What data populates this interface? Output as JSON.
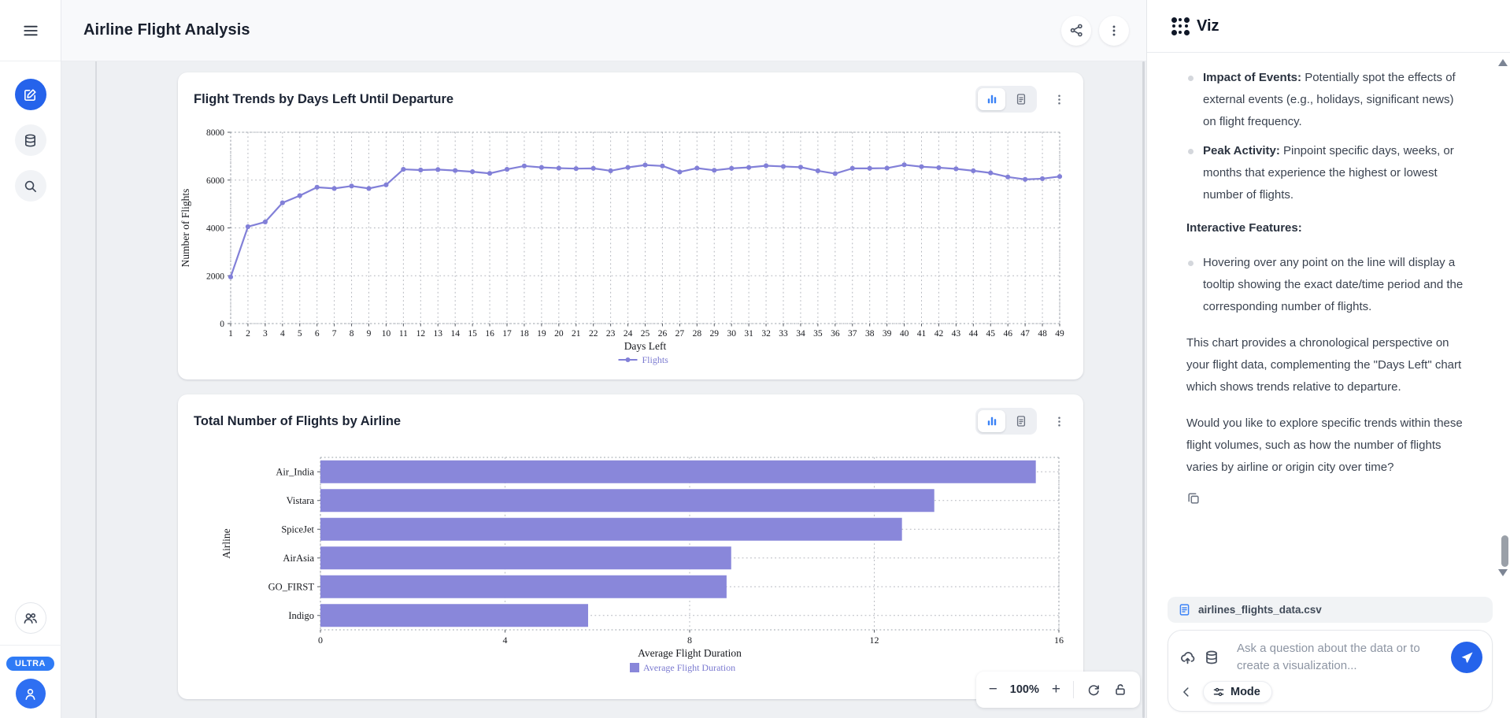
{
  "header": {
    "title": "Airline Flight Analysis"
  },
  "sidebar": {
    "plan_badge": "ULTRA"
  },
  "zoom_toolbar": {
    "minus": "−",
    "level": "100%",
    "plus": "+"
  },
  "chart_data": [
    {
      "type": "line",
      "title": "Flight Trends by Days Left Until Departure",
      "xlabel": "Days Left",
      "ylabel": "Number of Flights",
      "legend": [
        "Flights"
      ],
      "x": [
        1,
        2,
        3,
        4,
        5,
        6,
        7,
        8,
        9,
        10,
        11,
        12,
        13,
        14,
        15,
        16,
        17,
        18,
        19,
        20,
        21,
        22,
        23,
        24,
        25,
        26,
        27,
        28,
        29,
        30,
        31,
        32,
        33,
        34,
        35,
        36,
        37,
        38,
        39,
        40,
        41,
        42,
        43,
        44,
        45,
        46,
        47,
        48,
        49
      ],
      "values": [
        1950,
        4050,
        4250,
        5050,
        5350,
        5700,
        5650,
        5750,
        5650,
        5800,
        6450,
        6420,
        6440,
        6400,
        6350,
        6280,
        6450,
        6590,
        6530,
        6500,
        6480,
        6490,
        6390,
        6530,
        6630,
        6590,
        6340,
        6500,
        6410,
        6490,
        6530,
        6600,
        6570,
        6540,
        6390,
        6270,
        6490,
        6490,
        6500,
        6640,
        6560,
        6520,
        6470,
        6390,
        6300,
        6130,
        6030,
        6060,
        6150
      ],
      "y_ticks": [
        0,
        2000,
        4000,
        6000,
        8000
      ],
      "ylim": [
        0,
        8000
      ],
      "grid": true,
      "line_color": "#8280d8",
      "legend_text_color": "#7b7ad0"
    },
    {
      "type": "bar",
      "orientation": "horizontal",
      "title": "Total Number of Flights by Airline",
      "xlabel": "Average Flight Duration",
      "ylabel": "Airline",
      "legend": [
        "Average Flight Duration"
      ],
      "categories": [
        "Air_India",
        "Vistara",
        "SpiceJet",
        "AirAsia",
        "GO_FIRST",
        "Indigo"
      ],
      "values": [
        15.5,
        13.3,
        12.6,
        8.9,
        8.8,
        5.8
      ],
      "x_ticks": [
        0,
        4,
        8,
        12,
        16
      ],
      "xlim": [
        0,
        16
      ],
      "grid": true,
      "bar_color": "#8987da",
      "legend_text_color": "#7b7ad0"
    }
  ],
  "assistant_panel": {
    "brand": "Viz",
    "bullets": [
      {
        "label": "Impact of Events:",
        "text": " Potentially spot the effects of external events (e.g., holidays, significant news) on flight frequency."
      },
      {
        "label": "Peak Activity:",
        "text": " Pinpoint specific days, weeks, or months that experience the highest or lowest number of flights."
      }
    ],
    "interactive_heading": "Interactive Features:",
    "interactive_bullets": [
      {
        "label": "",
        "text": "Hovering over any point on the line will display a tooltip showing the exact date/time period and the corresponding number of flights."
      }
    ],
    "paragraphs": [
      "This chart provides a chronological perspective on your flight data, complementing the \"Days Left\" chart which shows trends relative to departure.",
      "Would you like to explore specific trends within these flight volumes, such as how the number of flights varies by airline or origin city over time?"
    ],
    "file_chip": "airlines_flights_data.csv",
    "input_placeholder": "Ask a question about the data or to create a visualization...",
    "mode_label": "Mode"
  }
}
